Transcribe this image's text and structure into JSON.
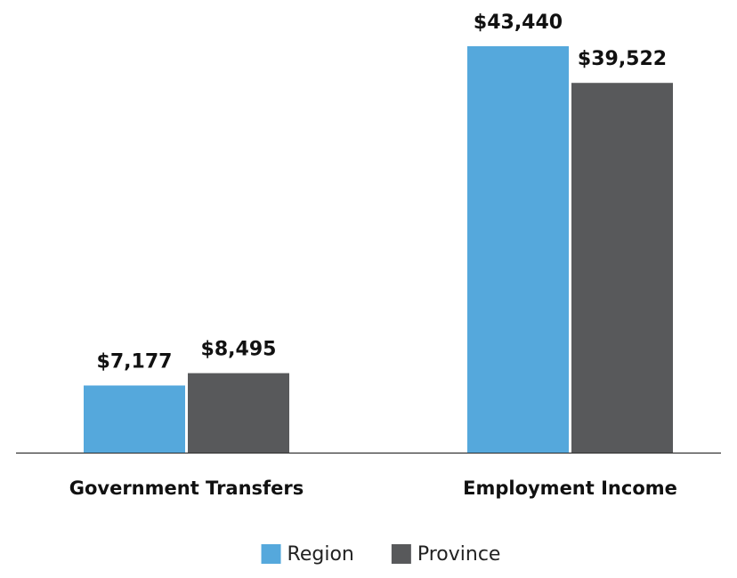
{
  "chart_data": {
    "type": "bar",
    "categories": [
      "Government Transfers",
      "Employment Income"
    ],
    "series": [
      {
        "name": "Region",
        "color": "#55a8dc",
        "values": [
          7177,
          43440
        ],
        "value_labels": [
          "$7,177",
          "$43,440"
        ]
      },
      {
        "name": "Province",
        "color": "#58595b",
        "values": [
          8495,
          39522
        ],
        "value_labels": [
          "$8,495",
          "$39,522"
        ]
      }
    ]
  }
}
